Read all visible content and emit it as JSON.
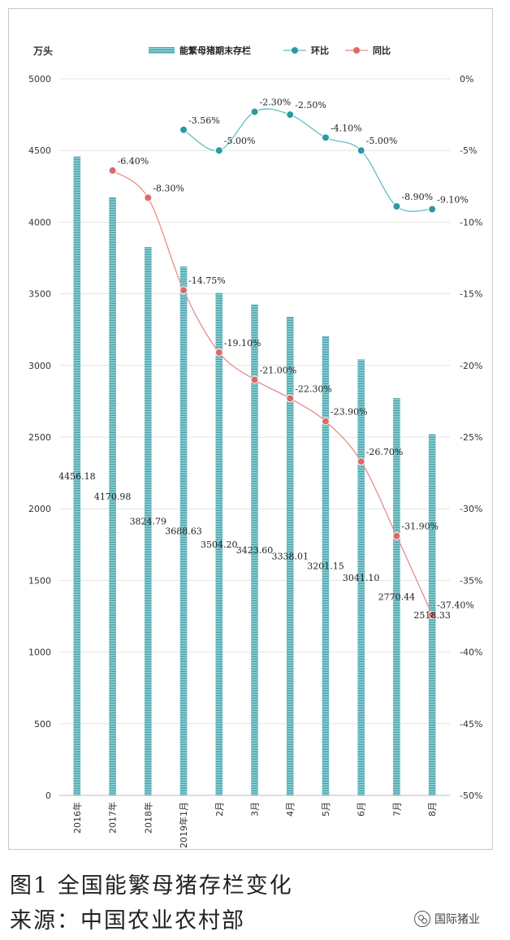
{
  "chart_data": {
    "type": "bar+line",
    "unit_left": "万头",
    "legend": {
      "bar": "能繁母猪期末存栏",
      "mom": "环比",
      "yoy": "同比"
    },
    "categories": [
      "2016年",
      "2017年",
      "2018年",
      "2019年1月",
      "2月",
      "3月",
      "4月",
      "5月",
      "6月",
      "7月",
      "8月"
    ],
    "bar_values": [
      4456.18,
      4170.98,
      3824.79,
      3688.63,
      3504.2,
      3423.6,
      3338.01,
      3201.15,
      3041.1,
      2770.44,
      2518.33
    ],
    "bar_labels": [
      "4456.18",
      "4170.98",
      "3824.79",
      "3688.63",
      "3504.20",
      "3423.60",
      "3338.01",
      "3201.15",
      "3041.10",
      "2770.44",
      "2518.33"
    ],
    "mom_values": [
      null,
      null,
      null,
      -3.56,
      -5.0,
      -2.3,
      -2.5,
      -4.1,
      -5.0,
      -8.9,
      -9.1
    ],
    "mom_labels": [
      "",
      "",
      "",
      "-3.56%",
      "-5.00%",
      "-2.30%",
      "-2.50%",
      "-4.10%",
      "-5.00%",
      "-8.90%",
      "-9.10%"
    ],
    "yoy_values": [
      null,
      -6.4,
      -8.3,
      -14.75,
      -19.1,
      -21.0,
      -22.3,
      -23.9,
      -26.7,
      -31.9,
      -37.4
    ],
    "yoy_labels": [
      "",
      "-6.40%",
      "-8.30%",
      "-14.75%",
      "-19.10%",
      "-21.00%",
      "-22.30%",
      "-23.90%",
      "-26.70%",
      "-31.90%",
      "-37.40%"
    ],
    "y_left": {
      "min": 0,
      "max": 5000,
      "step": 500,
      "ticks": [
        "0",
        "500",
        "1000",
        "1500",
        "2000",
        "2500",
        "3000",
        "3500",
        "4000",
        "4500",
        "5000"
      ]
    },
    "y_right": {
      "min": -50,
      "max": 0,
      "step": 5,
      "ticks": [
        "-50%",
        "-45%",
        "-40%",
        "-35%",
        "-30%",
        "-25%",
        "-20%",
        "-15%",
        "-10%",
        "-5%",
        "0%"
      ]
    },
    "grid": true,
    "legend_position": "top",
    "colors": {
      "bar": "#7fc6cc",
      "bar_stripe": "#4aa3ab",
      "mom": "#2a9aa0",
      "mom_line": "#5cc0c2",
      "yoy": "#d96b6b",
      "yoy_line": "#e58c8c"
    }
  },
  "caption": {
    "title": "图1  全国能繁母猪存栏变化",
    "source": "来源：中国农业农村部"
  },
  "watermark": {
    "icon": "wechat-icon",
    "text": "国际猪业"
  }
}
